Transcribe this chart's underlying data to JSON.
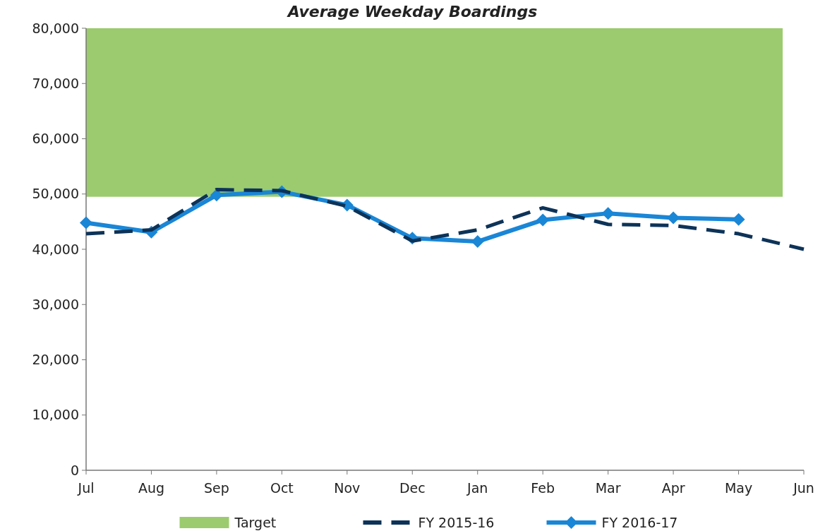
{
  "chart_data": {
    "type": "line",
    "title": "Average Weekday Boardings",
    "categories": [
      "Jul",
      "Aug",
      "Sep",
      "Oct",
      "Nov",
      "Dec",
      "Jan",
      "Feb",
      "Mar",
      "Apr",
      "May",
      "Jun"
    ],
    "series": [
      {
        "name": "FY 2015-16",
        "color": "#0d3358",
        "line_style": "dashed",
        "marker": "none",
        "values": [
          42800,
          43500,
          50800,
          50600,
          47800,
          41500,
          43500,
          47500,
          44500,
          44300,
          42800,
          40000
        ]
      },
      {
        "name": "FY 2016-17",
        "color": "#1a86d6",
        "line_style": "solid",
        "marker": "diamond",
        "values": [
          44800,
          43100,
          49800,
          50400,
          48000,
          42000,
          41400,
          45300,
          46500,
          45700,
          45400,
          null
        ]
      }
    ],
    "bands": [
      {
        "axis": "y",
        "from": 49500,
        "to": 80000,
        "label": "Target",
        "color": "#9bcb6e"
      }
    ],
    "ylim": [
      0,
      80000
    ],
    "yticks": [
      {
        "value": 0,
        "label": "0"
      },
      {
        "value": 10000,
        "label": "10,000"
      },
      {
        "value": 20000,
        "label": "20,000"
      },
      {
        "value": 30000,
        "label": "30,000"
      },
      {
        "value": 40000,
        "label": "40,000"
      },
      {
        "value": 50000,
        "label": "50,000"
      },
      {
        "value": 60000,
        "label": "60,000"
      },
      {
        "value": 70000,
        "label": "70,000"
      },
      {
        "value": 80000,
        "label": "80,000"
      }
    ],
    "grid": false,
    "legend": "bottom"
  }
}
